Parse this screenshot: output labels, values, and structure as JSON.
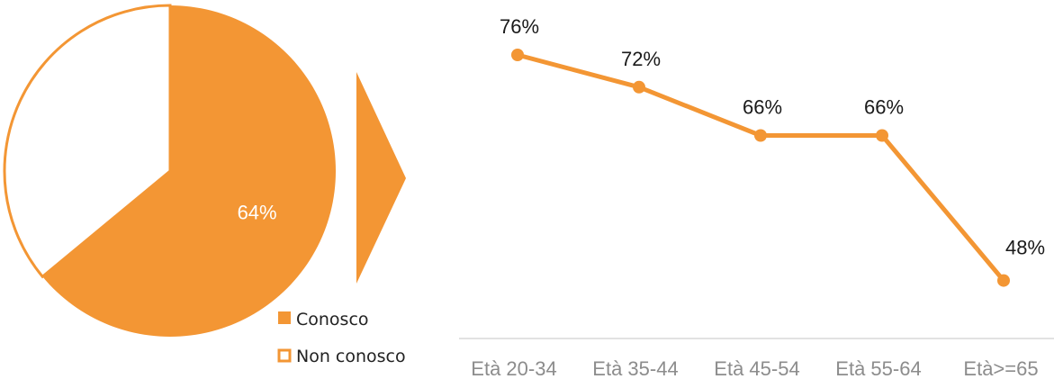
{
  "colors": {
    "accent": "#F39634",
    "axis": "#D9D9D9",
    "tick_text": "#8C8C8C",
    "white": "#FFFFFF"
  },
  "chart_data": [
    {
      "type": "pie",
      "slices": [
        {
          "name": "Conosco",
          "value": 64,
          "label": "64%"
        },
        {
          "name": "Non conosco",
          "value": 36,
          "label": ""
        }
      ],
      "legend": [
        "Conosco",
        "Non conosco"
      ],
      "legend_position": "bottom-right"
    },
    {
      "type": "line",
      "categories": [
        "Età 20-34",
        "Età 35-44",
        "Età 45-54",
        "Età 55-64",
        "Età>=65"
      ],
      "series": [
        {
          "values": [
            76,
            72,
            66,
            66,
            48
          ]
        }
      ],
      "data_labels": [
        "76%",
        "72%",
        "66%",
        "66%",
        "48%"
      ],
      "grid": false
    }
  ]
}
